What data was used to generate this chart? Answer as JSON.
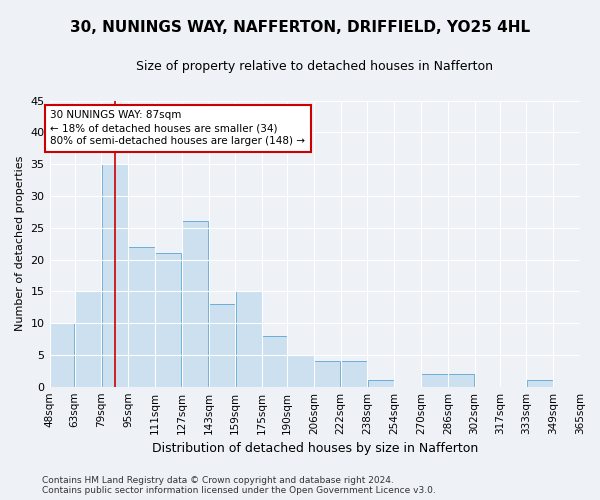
{
  "title": "30, NUNINGS WAY, NAFFERTON, DRIFFIELD, YO25 4HL",
  "subtitle": "Size of property relative to detached houses in Nafferton",
  "xlabel": "Distribution of detached houses by size in Nafferton",
  "ylabel": "Number of detached properties",
  "bar_color": "#cce0f0",
  "bar_edge_color": "#6aaed6",
  "bin_edges": [
    48,
    63,
    79,
    95,
    111,
    127,
    143,
    159,
    175,
    190,
    206,
    222,
    238,
    254,
    270,
    286,
    302,
    317,
    333,
    349,
    365
  ],
  "counts": [
    10,
    15,
    35,
    22,
    21,
    26,
    13,
    15,
    8,
    5,
    4,
    4,
    1,
    0,
    2,
    2,
    0,
    0,
    1,
    0
  ],
  "tick_labels": [
    "48sqm",
    "63sqm",
    "79sqm",
    "95sqm",
    "111sqm",
    "127sqm",
    "143sqm",
    "159sqm",
    "175sqm",
    "190sqm",
    "206sqm",
    "222sqm",
    "238sqm",
    "254sqm",
    "270sqm",
    "286sqm",
    "302sqm",
    "317sqm",
    "333sqm",
    "349sqm",
    "365sqm"
  ],
  "vline_x": 87,
  "vline_color": "#cc0000",
  "ylim": [
    0,
    45
  ],
  "yticks": [
    0,
    5,
    10,
    15,
    20,
    25,
    30,
    35,
    40,
    45
  ],
  "annotation_text": "30 NUNINGS WAY: 87sqm\n← 18% of detached houses are smaller (34)\n80% of semi-detached houses are larger (148) →",
  "annotation_box_facecolor": "#ffffff",
  "annotation_border_color": "#cc0000",
  "footer_text": "Contains HM Land Registry data © Crown copyright and database right 2024.\nContains public sector information licensed under the Open Government Licence v3.0.",
  "bg_color": "#eef2f7",
  "grid_color": "#ffffff",
  "title_fontsize": 11,
  "subtitle_fontsize": 9,
  "xlabel_fontsize": 9,
  "ylabel_fontsize": 8,
  "tick_fontsize": 7.5,
  "annotation_fontsize": 7.5,
  "footer_fontsize": 6.5
}
